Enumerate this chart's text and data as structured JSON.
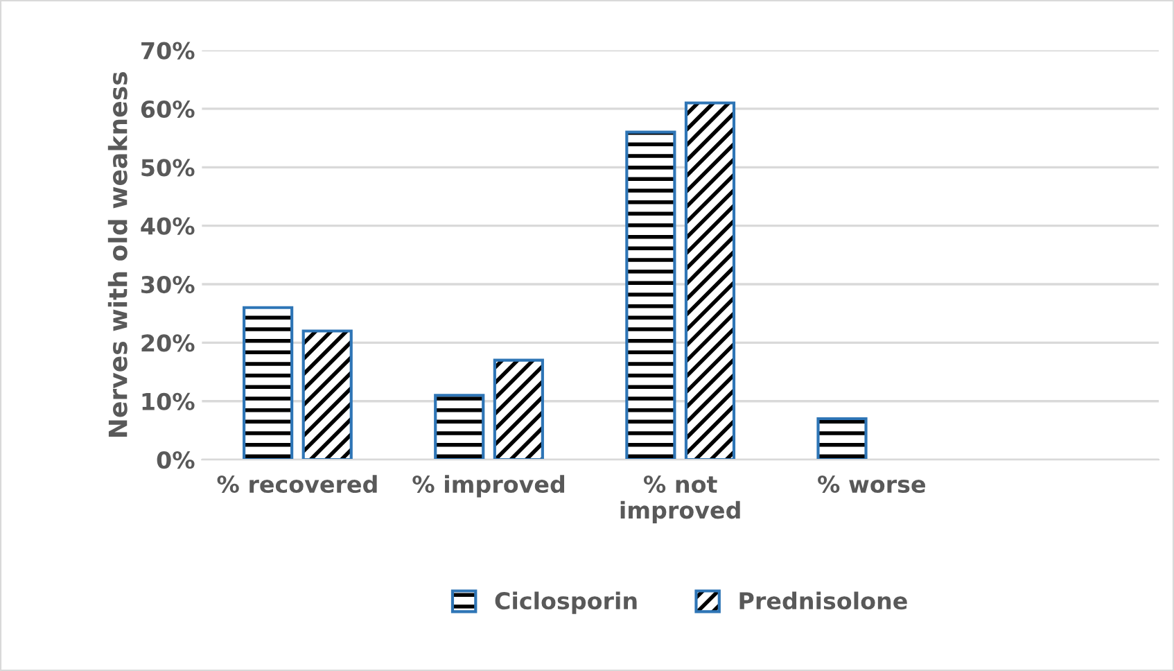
{
  "chart_data": {
    "type": "bar",
    "ylabel": "Nerves with old weakness",
    "categories": [
      "% recovered",
      "% improved",
      "% not improved",
      "% worse",
      null
    ],
    "series": [
      {
        "name": "Ciclosporin",
        "color": "#2e75b6",
        "values": [
          26,
          11,
          56,
          7,
          null
        ]
      },
      {
        "name": "Prednisolone",
        "color": "#2e75b6",
        "values": [
          22,
          17,
          61,
          null,
          null
        ]
      }
    ],
    "ylim": [
      0,
      70
    ],
    "yticks": [
      {
        "value": 0,
        "label": "0%"
      },
      {
        "value": 10,
        "label": "10%"
      },
      {
        "value": 20,
        "label": "20%"
      },
      {
        "value": 30,
        "label": "30%"
      },
      {
        "value": 40,
        "label": "40%"
      },
      {
        "value": 50,
        "label": "50%"
      },
      {
        "value": 60,
        "label": "60%"
      },
      {
        "value": 70,
        "label": "70%"
      }
    ],
    "grid": "y",
    "legend": "bottom"
  }
}
